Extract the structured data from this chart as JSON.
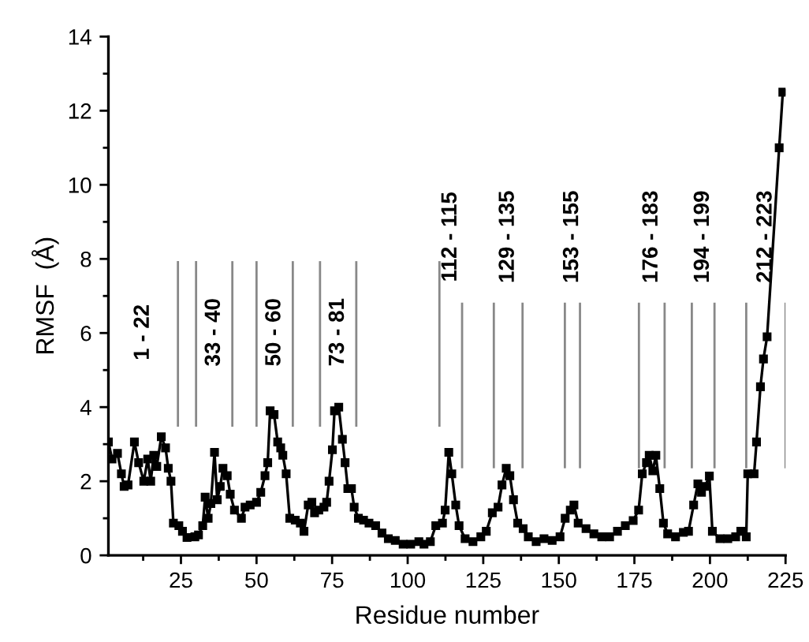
{
  "chart_data": {
    "type": "line",
    "xlabel": "Residue number",
    "ylabel": "RMSF  (Å)",
    "xlim": [
      1,
      225
    ],
    "xticks": [
      25,
      50,
      75,
      100,
      125,
      150,
      175,
      200,
      225
    ],
    "ylim": [
      0,
      14
    ],
    "yticks": [
      0,
      2,
      4,
      6,
      8,
      10,
      12,
      14
    ],
    "grid": false,
    "marker": "square",
    "line_style": "solid",
    "series": [
      {
        "color": "#000000",
        "x": [
          1,
          2.2,
          4,
          5.3,
          6.2,
          7.5,
          9.6,
          11,
          12.7,
          14,
          15,
          16,
          17,
          18.5,
          19.9,
          20.8,
          21.7,
          22.5,
          24.3,
          25.5,
          27,
          29.6,
          30.8,
          32.2,
          33,
          34,
          34.9,
          36.1,
          37,
          38,
          38.9,
          40.3,
          41.3,
          42.7,
          45,
          46.2,
          47.9,
          50,
          51.4,
          52.8,
          53.7,
          54.5,
          55.8,
          57,
          58,
          58.7,
          59.8,
          61,
          62.8,
          64.5,
          65.7,
          67.1,
          68.3,
          69.2,
          70.6,
          72.3,
          73.2,
          74,
          75.1,
          75.8,
          77.2,
          78.4,
          79.3,
          80.2,
          81.4,
          82.3,
          83.7,
          85.4,
          87.2,
          89.4,
          91.5,
          93.6,
          95.9,
          98.5,
          101,
          103.7,
          105.4,
          107.5,
          109.3,
          111.5,
          112.4,
          113.6,
          114.6,
          115.9,
          117,
          119,
          121.6,
          124.2,
          126,
          128,
          129.9,
          131.2,
          132.6,
          133.8,
          135,
          136.4,
          138.2,
          139.9,
          142.5,
          145.1,
          147.8,
          150.4,
          152.1,
          153.8,
          155,
          156.4,
          159,
          161.6,
          164.2,
          166.8,
          169.4,
          172,
          174.6,
          176.4,
          177.6,
          179,
          179.9,
          181.1,
          182.1,
          183.4,
          184.6,
          186,
          188.6,
          191.2,
          192.9,
          194.6,
          196,
          197.2,
          198.4,
          199.8,
          200.8,
          203.3,
          205.9,
          208.5,
          210.2,
          212,
          212.5,
          214.6,
          215.4,
          216.7,
          217.7,
          218.9,
          222.9,
          224.1
        ],
        "values": [
          3.06,
          2.6,
          2.75,
          2.2,
          1.86,
          1.9,
          3.06,
          2.5,
          2.0,
          2.6,
          2.0,
          2.7,
          2.4,
          3.2,
          2.9,
          2.35,
          2.0,
          0.87,
          0.8,
          0.65,
          0.48,
          0.5,
          0.55,
          0.8,
          1.57,
          1.0,
          1.4,
          2.78,
          1.5,
          1.86,
          2.35,
          2.15,
          1.65,
          1.22,
          1.0,
          1.3,
          1.36,
          1.43,
          1.7,
          2.15,
          2.5,
          3.9,
          3.8,
          3.06,
          2.9,
          2.7,
          2.2,
          1.0,
          0.95,
          0.87,
          0.65,
          1.36,
          1.43,
          1.15,
          1.22,
          1.3,
          1.43,
          2.0,
          2.85,
          3.9,
          4.0,
          3.13,
          2.5,
          1.8,
          1.8,
          1.3,
          1.0,
          0.95,
          0.87,
          0.8,
          0.6,
          0.45,
          0.4,
          0.3,
          0.3,
          0.37,
          0.3,
          0.37,
          0.8,
          0.87,
          1.22,
          2.78,
          2.2,
          1.36,
          0.8,
          0.45,
          0.37,
          0.5,
          0.65,
          1.15,
          1.3,
          1.9,
          2.35,
          2.15,
          1.5,
          0.87,
          0.72,
          0.5,
          0.37,
          0.45,
          0.4,
          0.5,
          1.0,
          1.22,
          1.36,
          0.87,
          0.72,
          0.58,
          0.5,
          0.5,
          0.65,
          0.8,
          0.94,
          1.22,
          2.2,
          2.5,
          2.7,
          2.28,
          2.7,
          1.8,
          0.87,
          0.58,
          0.5,
          0.62,
          0.65,
          1.36,
          1.93,
          1.7,
          1.86,
          2.14,
          0.65,
          0.45,
          0.45,
          0.5,
          0.65,
          0.5,
          2.2,
          2.2,
          3.06,
          4.55,
          5.3,
          5.9,
          11.0,
          12.5
        ]
      }
    ],
    "ref_lines": [
      {
        "axis": "x",
        "value": 24,
        "color": "#888888"
      },
      {
        "axis": "x",
        "value": 30,
        "color": "#888888"
      },
      {
        "axis": "x",
        "value": 42,
        "color": "#888888"
      },
      {
        "axis": "x",
        "value": 50,
        "color": "#888888"
      },
      {
        "axis": "x",
        "value": 62,
        "color": "#888888"
      },
      {
        "axis": "x",
        "value": 71,
        "color": "#888888"
      },
      {
        "axis": "x",
        "value": 83,
        "color": "#888888"
      },
      {
        "axis": "x",
        "value": 110.5,
        "color": "#888888"
      },
      {
        "axis": "x",
        "value": 118,
        "color": "#888888"
      },
      {
        "axis": "x",
        "value": 128.5,
        "color": "#888888"
      },
      {
        "axis": "x",
        "value": 138,
        "color": "#888888"
      },
      {
        "axis": "x",
        "value": 152,
        "color": "#888888"
      },
      {
        "axis": "x",
        "value": 157,
        "color": "#888888"
      },
      {
        "axis": "x",
        "value": 176.5,
        "color": "#888888"
      },
      {
        "axis": "x",
        "value": 185,
        "color": "#888888"
      },
      {
        "axis": "x",
        "value": 194,
        "color": "#888888"
      },
      {
        "axis": "x",
        "value": 201.5,
        "color": "#888888"
      },
      {
        "axis": "x",
        "value": 212,
        "color": "#888888"
      },
      {
        "axis": "x",
        "value": 225,
        "color": "#888888"
      }
    ],
    "annotations": [
      "1 - 22",
      "33 - 40",
      "50 - 60",
      "73 - 81",
      "112 - 115",
      "129 - 135",
      "153 - 155",
      "176 - 183",
      "194 - 199",
      "212 - 223"
    ]
  }
}
